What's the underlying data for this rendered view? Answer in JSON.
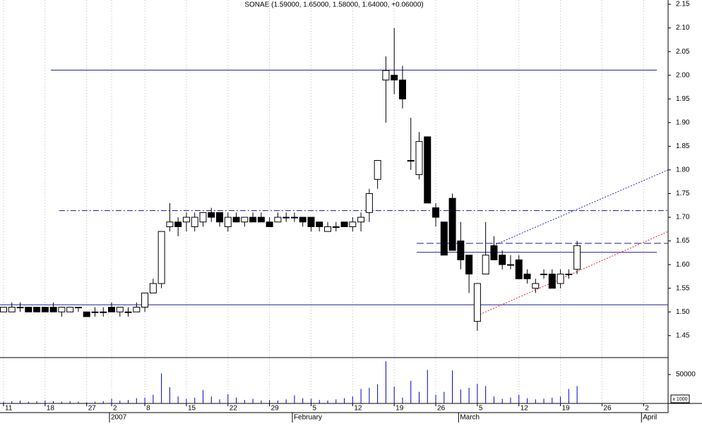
{
  "chart_data": {
    "type": "candlestick",
    "title": "SONAE (1.59000, 1.65000, 1.58000, 1.64000, +0.06000)",
    "categories": [
      "11",
      null,
      null,
      null,
      null,
      "18",
      null,
      null,
      null,
      null,
      "27",
      null,
      null,
      "2",
      null,
      null,
      null,
      "8",
      null,
      null,
      null,
      null,
      "15",
      null,
      null,
      null,
      null,
      "22",
      null,
      null,
      null,
      null,
      "29",
      null,
      null,
      null,
      null,
      "5",
      null,
      null,
      null,
      null,
      "12",
      null,
      null,
      null,
      null,
      "19",
      null,
      null,
      null,
      null,
      "26",
      null,
      null,
      null,
      null,
      "5",
      null,
      null,
      null,
      null,
      "12",
      null,
      null,
      null,
      null,
      "19",
      null,
      null,
      null,
      null,
      "26",
      null,
      null,
      null,
      null,
      "2",
      null
    ],
    "month_labels": [
      {
        "index": 13,
        "label": "2007"
      },
      {
        "index": 35,
        "label": "February"
      },
      {
        "index": 55,
        "label": "March"
      },
      {
        "index": 77,
        "label": "April"
      }
    ],
    "open": [
      1.5,
      1.5,
      1.51,
      1.51,
      1.51,
      1.51,
      1.51,
      1.5,
      1.5,
      1.51,
      1.5,
      1.5,
      1.5,
      1.51,
      1.5,
      1.5,
      1.5,
      1.51,
      1.54,
      1.56,
      1.68,
      1.69,
      1.69,
      1.68,
      1.69,
      1.71,
      1.71,
      1.68,
      1.7,
      1.69,
      1.7,
      1.7,
      1.69,
      1.69,
      1.7,
      1.7,
      1.7,
      1.7,
      1.69,
      1.67,
      1.68,
      1.69,
      1.68,
      1.69,
      1.71,
      1.78,
      1.99,
      2.0,
      1.99,
      1.82,
      1.79,
      1.87,
      1.72,
      1.69,
      1.74,
      1.65,
      1.62,
      1.48,
      1.58,
      1.64,
      1.62,
      1.6,
      1.61,
      1.58,
      1.55,
      1.58,
      1.58,
      1.56,
      1.58,
      1.59,
      null,
      null,
      null,
      null,
      null,
      null,
      null,
      null,
      null
    ],
    "high": [
      1.51,
      1.52,
      1.52,
      1.51,
      1.51,
      1.51,
      1.52,
      1.51,
      1.51,
      1.51,
      1.5,
      1.51,
      1.51,
      1.52,
      1.51,
      1.51,
      1.52,
      1.54,
      1.57,
      1.67,
      1.73,
      1.7,
      1.71,
      1.71,
      1.71,
      1.72,
      1.71,
      1.71,
      1.71,
      1.7,
      1.71,
      1.71,
      1.7,
      1.71,
      1.71,
      1.71,
      1.7,
      1.7,
      1.69,
      1.69,
      1.69,
      1.69,
      1.7,
      1.71,
      1.76,
      1.82,
      2.04,
      2.1,
      2.02,
      1.91,
      1.88,
      1.87,
      1.73,
      1.69,
      1.75,
      1.69,
      1.62,
      1.56,
      1.69,
      1.66,
      1.63,
      1.62,
      1.62,
      1.59,
      1.57,
      1.59,
      1.59,
      1.59,
      1.59,
      1.65,
      null,
      null,
      null,
      null,
      null,
      null,
      null,
      null,
      null
    ],
    "low": [
      1.5,
      1.5,
      1.5,
      1.5,
      1.5,
      1.5,
      1.5,
      1.49,
      1.5,
      1.5,
      1.49,
      1.49,
      1.49,
      1.5,
      1.49,
      1.49,
      1.5,
      1.5,
      1.54,
      1.55,
      1.67,
      1.66,
      1.67,
      1.67,
      1.68,
      1.69,
      1.68,
      1.67,
      1.69,
      1.68,
      1.69,
      1.69,
      1.68,
      1.69,
      1.69,
      1.69,
      1.68,
      1.67,
      1.67,
      1.67,
      1.67,
      1.68,
      1.67,
      1.67,
      1.69,
      1.76,
      1.9,
      1.96,
      1.93,
      1.8,
      1.78,
      1.73,
      1.68,
      1.62,
      1.63,
      1.59,
      1.54,
      1.46,
      1.58,
      1.61,
      1.59,
      1.59,
      1.57,
      1.56,
      1.54,
      1.57,
      1.55,
      1.55,
      1.57,
      1.58,
      null,
      null,
      null,
      null,
      null,
      null,
      null,
      null,
      null
    ],
    "close": [
      1.51,
      1.51,
      1.51,
      1.5,
      1.5,
      1.5,
      1.5,
      1.51,
      1.51,
      1.51,
      1.49,
      1.5,
      1.5,
      1.5,
      1.51,
      1.5,
      1.51,
      1.54,
      1.56,
      1.67,
      1.69,
      1.68,
      1.7,
      1.7,
      1.71,
      1.7,
      1.69,
      1.7,
      1.69,
      1.7,
      1.69,
      1.69,
      1.68,
      1.7,
      1.7,
      1.7,
      1.69,
      1.68,
      1.68,
      1.68,
      1.68,
      1.68,
      1.69,
      1.7,
      1.75,
      1.82,
      2.01,
      1.99,
      1.95,
      1.82,
      1.86,
      1.73,
      1.7,
      1.62,
      1.63,
      1.61,
      1.58,
      1.56,
      1.62,
      1.61,
      1.6,
      1.6,
      1.57,
      1.57,
      1.56,
      1.58,
      1.55,
      1.58,
      1.58,
      1.64,
      null,
      null,
      null,
      null,
      null,
      null,
      null,
      null,
      null
    ],
    "volume": [
      3000,
      4000,
      5000,
      3000,
      4000,
      5000,
      4000,
      3000,
      4000,
      3000,
      2000,
      3000,
      4000,
      8000,
      5000,
      6000,
      9000,
      10000,
      15000,
      52000,
      28000,
      12000,
      8000,
      10000,
      23000,
      12000,
      7000,
      16000,
      10000,
      6000,
      8000,
      5000,
      6000,
      5000,
      7000,
      14000,
      9000,
      8000,
      6000,
      5000,
      7000,
      9000,
      12000,
      25000,
      27000,
      33000,
      73000,
      29000,
      10000,
      39000,
      20000,
      58000,
      15000,
      20000,
      57000,
      24000,
      27000,
      34000,
      30000,
      12000,
      8000,
      10000,
      15000,
      9000,
      7000,
      8000,
      10000,
      12000,
      25000,
      30000,
      null,
      null,
      null,
      null,
      null,
      null,
      null,
      null,
      null
    ],
    "xlim": [
      -0.425,
      79.95
    ],
    "ylim": [
      1.405,
      2.159
    ],
    "yticks": [
      {
        "value": 1.45,
        "label": "1.45"
      },
      {
        "value": 1.5,
        "label": "1.50"
      },
      {
        "value": 1.55,
        "label": "1.55"
      },
      {
        "value": 1.6,
        "label": "1.60"
      },
      {
        "value": 1.65,
        "label": "1.65"
      },
      {
        "value": 1.7,
        "label": "1.70"
      },
      {
        "value": 1.75,
        "label": "1.75"
      },
      {
        "value": 1.8,
        "label": "1.80"
      },
      {
        "value": 1.85,
        "label": "1.85"
      },
      {
        "value": 1.9,
        "label": "1.90"
      },
      {
        "value": 1.95,
        "label": "1.95"
      },
      {
        "value": 2.0,
        "label": "2.00"
      },
      {
        "value": 2.05,
        "label": "2.05"
      },
      {
        "value": 2.1,
        "label": "2.10"
      },
      {
        "value": 2.15,
        "label": "2.15"
      }
    ],
    "volume_ylim": [
      0,
      79300
    ],
    "volume_yticks": [
      50000
    ],
    "volume_unit": "x 1000",
    "up_color": "#ffffff",
    "down_color": "#000000",
    "volume_color": "#0000cc",
    "lines": [
      {
        "x": [
          -0.425,
          79.95
        ],
        "y": [
          1.515,
          1.515
        ],
        "color": "#1a1aa0",
        "style": "solid"
      },
      {
        "x": [
          5.7,
          78.6
        ],
        "y": [
          2.011,
          2.011
        ],
        "color": "#1a1aa0",
        "style": "solid"
      },
      {
        "x": [
          6.7,
          79.95
        ],
        "y": [
          1.714,
          1.714
        ],
        "color": "#1a1aa0",
        "style": "dashdot"
      },
      {
        "x": [
          49.7,
          79.95
        ],
        "y": [
          1.645,
          1.645
        ],
        "color": "#1a1aa0",
        "style": "dashed"
      },
      {
        "x": [
          49.7,
          78.6
        ],
        "y": [
          1.626,
          1.626
        ],
        "color": "#1a1aa0",
        "style": "solid"
      },
      {
        "x": [
          58.6,
          79.95
        ],
        "y": [
          1.638,
          1.8
        ],
        "color": "#2222cc",
        "style": "dotted"
      },
      {
        "x": [
          56.7,
          79.95
        ],
        "y": [
          1.49,
          1.67
        ],
        "color": "#dd2222",
        "style": "dotted"
      }
    ]
  }
}
